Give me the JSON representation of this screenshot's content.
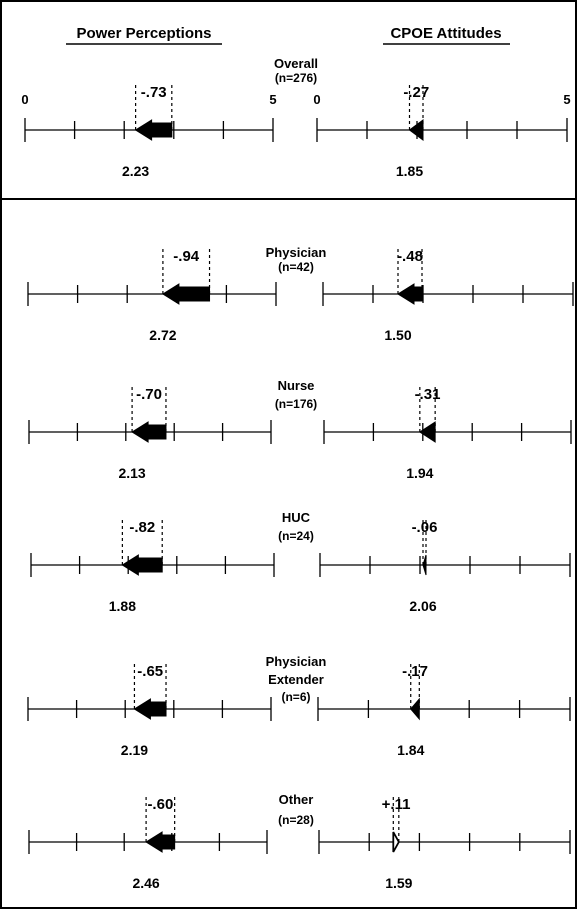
{
  "chart_data": {
    "type": "arrow-scale",
    "headers": {
      "left": "Power Perceptions",
      "right": "CPOE Attitudes"
    },
    "scale": {
      "min": 0,
      "max": 5,
      "min_label": "0",
      "max_label": "5"
    },
    "rows": [
      {
        "group": "Overall",
        "n_label": "(n=276)",
        "power": {
          "post": 2.23,
          "post_label": "2.23",
          "change": -0.73,
          "change_label": "-.73"
        },
        "cpoe": {
          "post": 1.85,
          "post_label": "1.85",
          "change": -0.27,
          "change_label": "-.27"
        }
      },
      {
        "group": "Physician",
        "n_label": "(n=42)",
        "power": {
          "post": 2.72,
          "post_label": "2.72",
          "change": -0.94,
          "change_label": "-.94"
        },
        "cpoe": {
          "post": 1.5,
          "post_label": "1.50",
          "change": -0.48,
          "change_label": "-.48"
        }
      },
      {
        "group": "Nurse",
        "n_label": "(n=176)",
        "power": {
          "post": 2.13,
          "post_label": "2.13",
          "change": -0.7,
          "change_label": "-.70"
        },
        "cpoe": {
          "post": 1.94,
          "post_label": "1.94",
          "change": -0.31,
          "change_label": "-.31"
        }
      },
      {
        "group": "HUC",
        "n_label": "(n=24)",
        "power": {
          "post": 1.88,
          "post_label": "1.88",
          "change": -0.82,
          "change_label": "-.82"
        },
        "cpoe": {
          "post": 2.06,
          "post_label": "2.06",
          "change": -0.06,
          "change_label": "-.06"
        }
      },
      {
        "group": "Physician Extender",
        "group_lines": [
          "Physician",
          "Extender"
        ],
        "n_label": "(n=6)",
        "power": {
          "post": 2.19,
          "post_label": "2.19",
          "change": -0.65,
          "change_label": "-.65"
        },
        "cpoe": {
          "post": 1.84,
          "post_label": "1.84",
          "change": -0.17,
          "change_label": "-.17"
        }
      },
      {
        "group": "Other",
        "n_label": "(n=28)",
        "power": {
          "post": 2.46,
          "post_label": "2.46",
          "change": -0.6,
          "change_label": "-.60"
        },
        "cpoe": {
          "post": 1.59,
          "post_label": "1.59",
          "change": 0.11,
          "change_label": "+.11"
        }
      }
    ]
  }
}
